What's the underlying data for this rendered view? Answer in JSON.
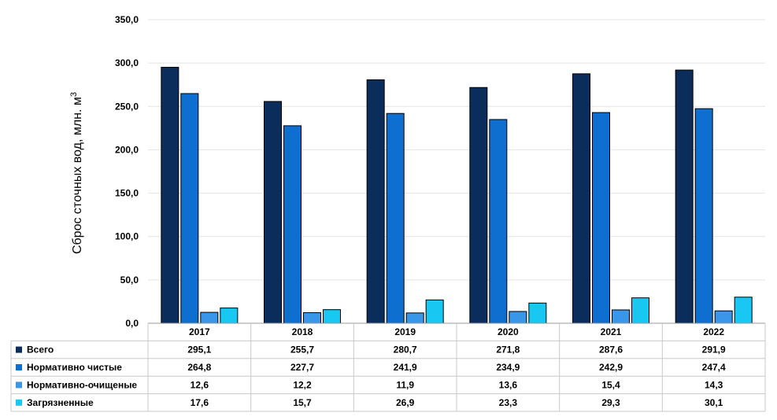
{
  "chart_data": {
    "type": "bar",
    "ylabel": "Сброс сточных вод, млн. м",
    "ylabel_sup": "3",
    "ylim": [
      0,
      350
    ],
    "yticks": [
      "0,0",
      "50,0",
      "100,0",
      "150,0",
      "200,0",
      "250,0",
      "300,0",
      "350,0"
    ],
    "ytick_values": [
      0,
      50,
      100,
      150,
      200,
      250,
      300,
      350
    ],
    "grid": true,
    "legend": "data-table",
    "categories": [
      "2017",
      "2018",
      "2019",
      "2020",
      "2021",
      "2022"
    ],
    "series": [
      {
        "name": "Всего",
        "color": "#0b2d5b",
        "values": [
          295.1,
          255.7,
          280.7,
          271.8,
          287.6,
          291.9
        ],
        "labels": [
          "295,1",
          "255,7",
          "280,7",
          "271,8",
          "287,6",
          "291,9"
        ]
      },
      {
        "name": "Нормативно  чистые",
        "color": "#0f6fd0",
        "values": [
          264.8,
          227.7,
          241.9,
          234.9,
          242.9,
          247.4
        ],
        "labels": [
          "264,8",
          "227,7",
          "241,9",
          "234,9",
          "242,9",
          "247,4"
        ]
      },
      {
        "name": "Нормативно-очищеные",
        "color": "#3a96e8",
        "values": [
          12.6,
          12.2,
          11.9,
          13.6,
          15.4,
          14.3
        ],
        "labels": [
          "12,6",
          "12,2",
          "11,9",
          "13,6",
          "15,4",
          "14,3"
        ]
      },
      {
        "name": "Загрязненные",
        "color": "#19c8f2",
        "values": [
          17.6,
          15.7,
          26.9,
          23.3,
          29.3,
          30.1
        ],
        "labels": [
          "17,6",
          "15,7",
          "26,9",
          "23,3",
          "29,3",
          "30,1"
        ]
      }
    ]
  }
}
